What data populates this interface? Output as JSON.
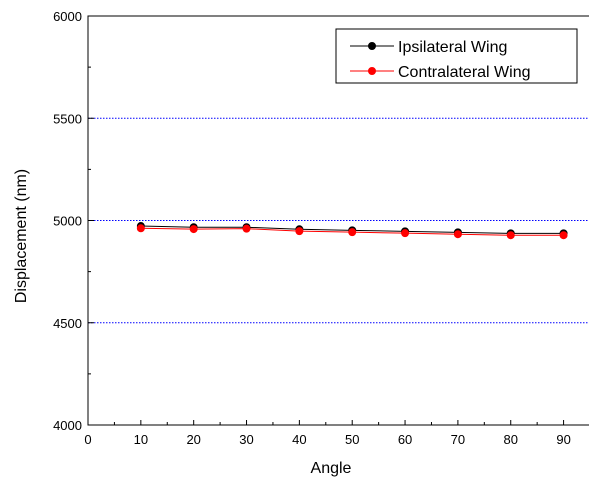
{
  "chart_data": {
    "type": "line",
    "title": "",
    "xlabel": "Angle",
    "ylabel": "Displacement (nm)",
    "xlim": [
      0,
      95
    ],
    "ylim": [
      4000,
      6000
    ],
    "x_ticks": [
      0,
      10,
      20,
      30,
      40,
      50,
      60,
      70,
      80,
      90
    ],
    "y_ticks": [
      4000,
      4500,
      5000,
      5500,
      6000
    ],
    "grid_y": [
      4500,
      5000,
      5500
    ],
    "grid_color": "#0000ff",
    "legend_position": "top-right",
    "x": [
      10,
      20,
      30,
      40,
      50,
      60,
      70,
      80,
      90
    ],
    "series": [
      {
        "name": "Ipsilateral Wing",
        "color": "#000000",
        "values": [
          4973,
          4967,
          4967,
          4957,
          4952,
          4947,
          4942,
          4937,
          4937
        ]
      },
      {
        "name": "Contralateral Wing",
        "color": "#ff0000",
        "values": [
          4962,
          4958,
          4960,
          4948,
          4943,
          4938,
          4933,
          4928,
          4928
        ]
      }
    ]
  }
}
